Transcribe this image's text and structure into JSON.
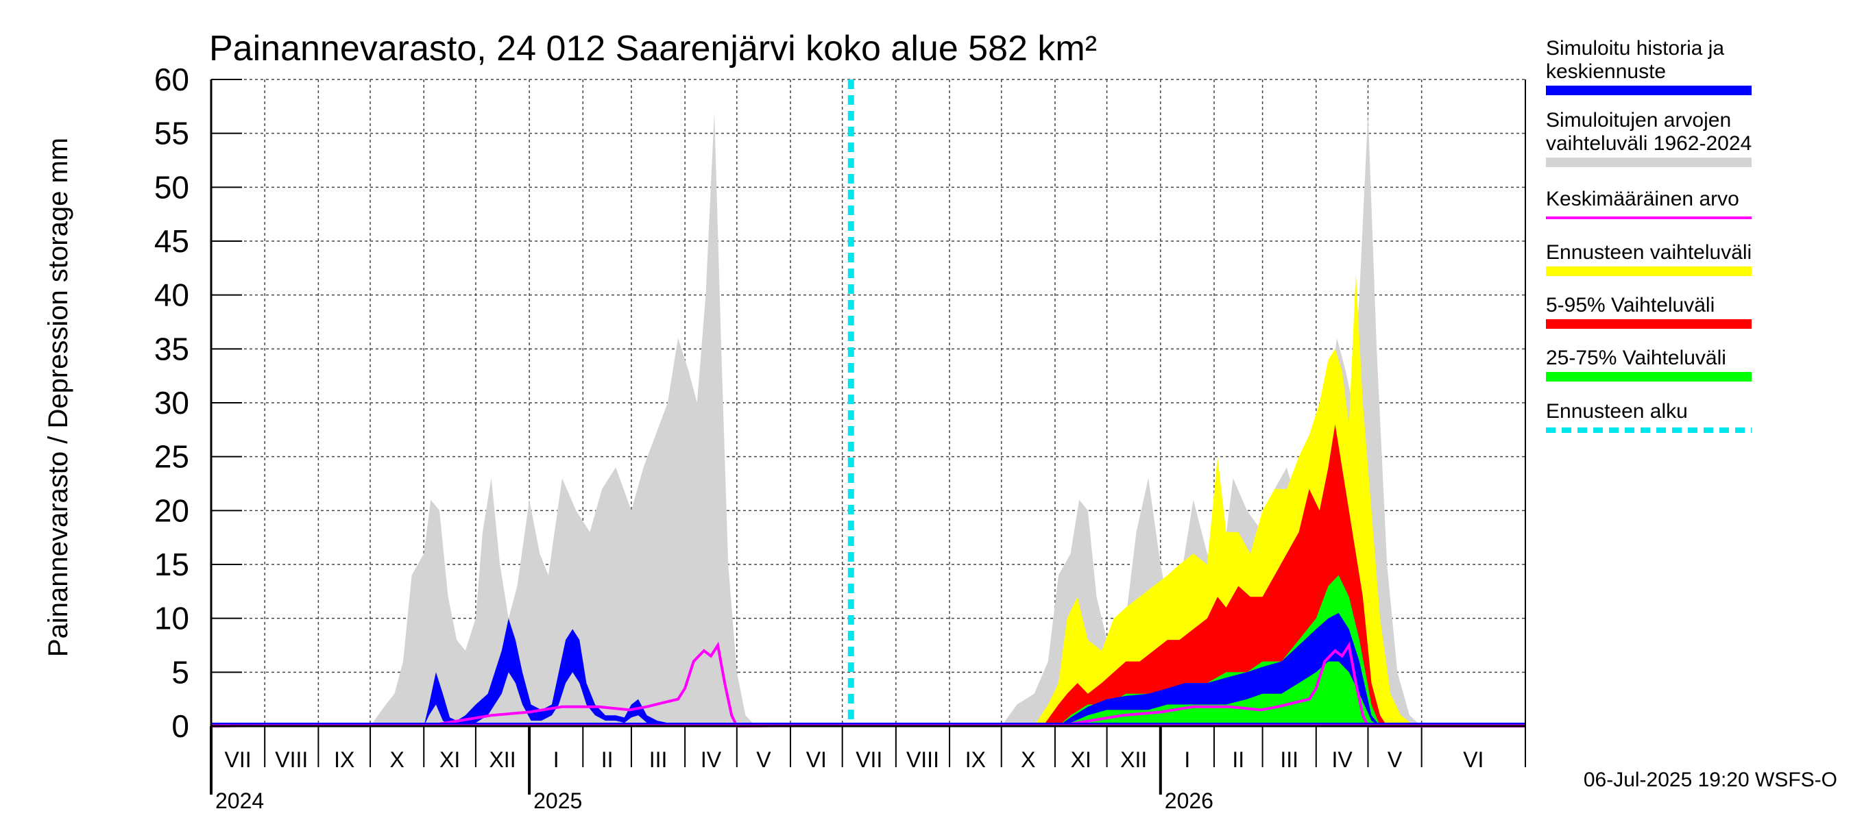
{
  "chart_data": {
    "type": "area",
    "title": "Painannevarasto, 24 012 Saarenjärvi koko alue 582 km²",
    "ylabel": "Painannevarasto / Depression storage    mm",
    "ylim": [
      0,
      60
    ],
    "yticks": [
      0,
      5,
      10,
      15,
      20,
      25,
      30,
      35,
      40,
      45,
      50,
      55,
      60
    ],
    "xlim": [
      "2024-07-01",
      "2026-07-31"
    ],
    "months": [
      {
        "label": "VII",
        "start": "2024-07-01"
      },
      {
        "label": "VIII",
        "start": "2024-08-01"
      },
      {
        "label": "IX",
        "start": "2024-09-01"
      },
      {
        "label": "X",
        "start": "2024-10-01"
      },
      {
        "label": "XI",
        "start": "2024-11-01"
      },
      {
        "label": "XII",
        "start": "2024-12-01"
      },
      {
        "label": "I",
        "start": "2025-01-01"
      },
      {
        "label": "II",
        "start": "2025-02-01"
      },
      {
        "label": "III",
        "start": "2025-03-01"
      },
      {
        "label": "IV",
        "start": "2025-04-01"
      },
      {
        "label": "V",
        "start": "2025-05-01"
      },
      {
        "label": "VI",
        "start": "2025-06-01"
      },
      {
        "label": "VII",
        "start": "2025-07-01"
      },
      {
        "label": "VIII",
        "start": "2025-08-01"
      },
      {
        "label": "IX",
        "start": "2025-09-01"
      },
      {
        "label": "X",
        "start": "2025-10-01"
      },
      {
        "label": "XI",
        "start": "2025-11-01"
      },
      {
        "label": "XII",
        "start": "2025-12-01"
      },
      {
        "label": "I",
        "start": "2026-01-01"
      },
      {
        "label": "II",
        "start": "2026-02-01"
      },
      {
        "label": "III",
        "start": "2026-03-01"
      },
      {
        "label": "IV",
        "start": "2026-04-01"
      },
      {
        "label": "V",
        "start": "2026-05-01"
      },
      {
        "label": "VI",
        "start": "2026-06-01"
      }
    ],
    "years": [
      {
        "label": "2024",
        "date": "2024-07-01"
      },
      {
        "label": "2025",
        "date": "2025-01-01"
      },
      {
        "label": "2026",
        "date": "2026-01-01"
      }
    ],
    "forecast_start": "2025-07-06",
    "series": [
      {
        "name": "Simuloitujen arvojen vaihteluväli 1962-2024",
        "color": "#d3d3d3",
        "x": [
          "2024-07-01",
          "2024-10-01",
          "2024-10-10",
          "2024-10-15",
          "2024-10-20",
          "2024-10-25",
          "2024-11-01",
          "2024-11-05",
          "2024-11-10",
          "2024-11-15",
          "2024-11-20",
          "2024-11-25",
          "2024-12-01",
          "2024-12-05",
          "2024-12-10",
          "2024-12-15",
          "2024-12-20",
          "2024-12-25",
          "2025-01-01",
          "2025-01-07",
          "2025-01-12",
          "2025-01-20",
          "2025-01-28",
          "2025-02-05",
          "2025-02-12",
          "2025-02-20",
          "2025-03-01",
          "2025-03-08",
          "2025-03-15",
          "2025-03-22",
          "2025-03-28",
          "2025-04-03",
          "2025-04-08",
          "2025-04-13",
          "2025-04-18",
          "2025-04-22",
          "2025-04-26",
          "2025-05-01",
          "2025-05-06",
          "2025-05-12",
          "2025-05-18",
          "2025-05-25",
          "2025-06-01",
          "2025-10-01",
          "2025-10-10",
          "2025-10-20",
          "2025-10-28",
          "2025-11-03",
          "2025-11-10",
          "2025-11-15",
          "2025-11-20",
          "2025-11-25",
          "2025-12-01",
          "2025-12-06",
          "2025-12-12",
          "2025-12-18",
          "2025-12-25",
          "2026-01-01",
          "2026-01-07",
          "2026-01-12",
          "2026-01-20",
          "2026-01-28",
          "2026-02-05",
          "2026-02-12",
          "2026-02-20",
          "2026-03-01",
          "2026-03-08",
          "2026-03-15",
          "2026-03-22",
          "2026-03-28",
          "2026-04-03",
          "2026-04-08",
          "2026-04-13",
          "2026-04-18",
          "2026-04-22",
          "2026-04-26",
          "2026-05-01",
          "2026-05-06",
          "2026-05-12",
          "2026-05-18",
          "2026-05-25",
          "2026-06-01"
        ],
        "low": [
          0,
          0,
          0,
          0,
          0,
          0,
          0,
          0,
          0,
          0,
          0,
          0,
          0,
          0,
          0,
          0,
          0,
          0,
          0,
          0,
          0,
          0,
          0,
          0,
          0,
          0,
          0,
          0,
          0,
          0,
          0,
          0,
          0,
          0,
          0,
          0,
          0,
          0,
          0,
          0,
          0,
          0,
          0,
          0,
          0,
          0,
          0,
          0,
          0,
          0,
          0,
          0,
          0,
          0,
          0,
          0,
          0,
          0,
          0,
          0,
          0,
          0,
          0,
          0,
          0,
          0,
          0,
          0,
          0,
          0,
          0,
          0,
          0,
          0,
          0,
          0,
          0,
          0,
          0,
          0,
          0,
          0
        ],
        "high": [
          0,
          0,
          2,
          3,
          6,
          14,
          16,
          21,
          20,
          12,
          8,
          7,
          10,
          18,
          23,
          15,
          10,
          13,
          21,
          16,
          14,
          23,
          20,
          18,
          22,
          24,
          20,
          24,
          27,
          30,
          36,
          33,
          30,
          40,
          57,
          35,
          15,
          5,
          1,
          0,
          0,
          0,
          0,
          0,
          2,
          3,
          6,
          14,
          16,
          21,
          20,
          12,
          8,
          7,
          10,
          18,
          23,
          15,
          10,
          13,
          21,
          16,
          14,
          23,
          20,
          18,
          22,
          24,
          20,
          24,
          27,
          30,
          36,
          33,
          30,
          40,
          57,
          35,
          15,
          5,
          1,
          0
        ]
      },
      {
        "name": "Ennusteen vaihteluväli",
        "color": "#ffff00",
        "x": [
          "2025-10-20",
          "2025-10-28",
          "2025-11-03",
          "2025-11-08",
          "2025-11-14",
          "2025-11-20",
          "2025-11-28",
          "2025-12-05",
          "2025-12-12",
          "2025-12-20",
          "2025-12-28",
          "2026-01-05",
          "2026-01-12",
          "2026-01-20",
          "2026-01-28",
          "2026-02-03",
          "2026-02-08",
          "2026-02-15",
          "2026-02-22",
          "2026-03-01",
          "2026-03-08",
          "2026-03-15",
          "2026-03-22",
          "2026-03-28",
          "2026-04-03",
          "2026-04-08",
          "2026-04-12",
          "2026-04-16",
          "2026-04-20",
          "2026-04-24",
          "2026-04-28",
          "2026-05-03",
          "2026-05-08",
          "2026-05-14",
          "2026-05-20",
          "2026-05-28"
        ],
        "low": [
          0,
          0,
          0,
          0,
          0,
          0,
          0,
          0,
          0,
          0,
          0,
          0,
          0,
          0,
          0,
          0,
          0,
          0,
          0,
          0,
          0,
          0,
          0,
          0,
          0,
          0,
          0,
          0,
          0,
          0,
          0,
          0,
          0,
          0,
          0,
          0
        ],
        "high": [
          0,
          2,
          4,
          10,
          12,
          8,
          7,
          10,
          11,
          12,
          13,
          14,
          15,
          16,
          15,
          25,
          18,
          18,
          16,
          20,
          22,
          22,
          25,
          27,
          30,
          34,
          35,
          33,
          28,
          42,
          30,
          20,
          10,
          3,
          1,
          0
        ]
      },
      {
        "name": "5-95% Vaihteluväli",
        "color": "#ff0000",
        "x": [
          "2025-10-25",
          "2025-11-03",
          "2025-11-08",
          "2025-11-14",
          "2025-11-20",
          "2025-11-28",
          "2025-12-05",
          "2025-12-12",
          "2025-12-20",
          "2025-12-28",
          "2026-01-05",
          "2026-01-12",
          "2026-01-20",
          "2026-01-28",
          "2026-02-03",
          "2026-02-08",
          "2026-02-15",
          "2026-02-22",
          "2026-03-01",
          "2026-03-08",
          "2026-03-15",
          "2026-03-22",
          "2026-03-28",
          "2026-04-03",
          "2026-04-08",
          "2026-04-12",
          "2026-04-16",
          "2026-04-20",
          "2026-04-24",
          "2026-04-28",
          "2026-05-03",
          "2026-05-08",
          "2026-05-12"
        ],
        "low": [
          0,
          0,
          0,
          0,
          0,
          0,
          0,
          0,
          0,
          0,
          0,
          0,
          0,
          0,
          0,
          0,
          0,
          0,
          0,
          0,
          0,
          0,
          0,
          0,
          0,
          0,
          0,
          0,
          0,
          0,
          0,
          0,
          0
        ],
        "high": [
          0,
          2,
          3,
          4,
          3,
          4,
          5,
          6,
          6,
          7,
          8,
          8,
          9,
          10,
          12,
          11,
          13,
          12,
          12,
          14,
          16,
          18,
          22,
          20,
          24,
          28,
          24,
          20,
          16,
          12,
          4,
          1,
          0
        ]
      },
      {
        "name": "25-75% Vaihteluväli",
        "color": "#00ff00",
        "x": [
          "2025-11-03",
          "2025-11-10",
          "2025-11-20",
          "2025-12-01",
          "2025-12-12",
          "2025-12-25",
          "2026-01-05",
          "2026-01-15",
          "2026-01-28",
          "2026-02-08",
          "2026-02-20",
          "2026-03-01",
          "2026-03-12",
          "2026-03-22",
          "2026-04-01",
          "2026-04-08",
          "2026-04-14",
          "2026-04-20",
          "2026-04-26",
          "2026-05-03",
          "2026-05-08"
        ],
        "low": [
          0,
          0,
          0,
          0,
          0,
          0,
          0,
          0,
          0,
          0,
          0,
          0,
          0,
          0,
          0,
          0,
          0,
          0,
          0,
          0,
          0
        ],
        "high": [
          0,
          1,
          2,
          2,
          3,
          3,
          3,
          4,
          4,
          5,
          5,
          6,
          6,
          8,
          10,
          13,
          14,
          12,
          8,
          2,
          0
        ]
      },
      {
        "name": "Simuloitu historia ja keskiennuste",
        "color": "#0000ff",
        "x": [
          "2024-07-01",
          "2024-11-01",
          "2024-11-04",
          "2024-11-08",
          "2024-11-12",
          "2024-11-16",
          "2024-11-20",
          "2024-11-25",
          "2024-12-01",
          "2024-12-08",
          "2024-12-12",
          "2024-12-16",
          "2024-12-20",
          "2024-12-24",
          "2024-12-28",
          "2025-01-02",
          "2025-01-08",
          "2025-01-14",
          "2025-01-18",
          "2025-01-22",
          "2025-01-26",
          "2025-01-30",
          "2025-02-03",
          "2025-02-08",
          "2025-02-14",
          "2025-02-20",
          "2025-02-25",
          "2025-03-01",
          "2025-03-05",
          "2025-03-10",
          "2025-03-16",
          "2025-03-22",
          "2025-04-01",
          "2025-05-01",
          "2025-11-03",
          "2025-11-10",
          "2025-11-20",
          "2025-12-01",
          "2025-12-12",
          "2025-12-25",
          "2026-01-05",
          "2026-01-15",
          "2026-01-28",
          "2026-02-08",
          "2026-02-20",
          "2026-03-01",
          "2026-03-12",
          "2026-03-22",
          "2026-04-01",
          "2026-04-08",
          "2026-04-14",
          "2026-04-20",
          "2026-04-26",
          "2026-05-03",
          "2026-05-08",
          "2026-07-31"
        ],
        "low": [
          0,
          0,
          1,
          2,
          0.5,
          0,
          0,
          0,
          0.3,
          1,
          2,
          3,
          5,
          4,
          2,
          0.5,
          0.5,
          1,
          2,
          4,
          5,
          4,
          2,
          1,
          0.5,
          0.5,
          0.3,
          0.8,
          1,
          0.3,
          0.2,
          0.2,
          0,
          0,
          0,
          0.3,
          1,
          1.5,
          1.5,
          1.5,
          2,
          2,
          2,
          2,
          2.5,
          3,
          3,
          4,
          5,
          6,
          6,
          5,
          3,
          0.5,
          0,
          0
        ],
        "high": [
          0,
          0,
          2,
          5,
          3,
          0.8,
          0.5,
          1,
          2,
          3,
          5,
          7,
          10,
          8,
          5,
          2,
          1.5,
          2,
          5,
          8,
          9,
          8,
          4,
          2,
          1,
          1,
          0.8,
          2,
          2.5,
          1,
          0.5,
          0.3,
          0,
          0,
          0,
          0.8,
          1.8,
          2.5,
          2.8,
          3,
          3.5,
          4,
          4,
          4.5,
          5,
          5.5,
          6,
          7.5,
          9,
          10,
          10.5,
          9,
          6,
          1,
          0,
          0
        ]
      },
      {
        "name": "Keskimääräinen arvo",
        "color": "#ff00ff",
        "x": [
          "2024-07-01",
          "2024-11-10",
          "2024-11-25",
          "2024-12-10",
          "2025-01-01",
          "2025-01-20",
          "2025-02-10",
          "2025-02-28",
          "2025-03-10",
          "2025-03-20",
          "2025-03-28",
          "2025-04-01",
          "2025-04-06",
          "2025-04-12",
          "2025-04-16",
          "2025-04-20",
          "2025-04-24",
          "2025-04-28",
          "2025-05-01",
          "2025-11-10",
          "2025-11-25",
          "2025-12-10",
          "2026-01-01",
          "2026-01-20",
          "2026-02-10",
          "2026-02-28",
          "2026-03-10",
          "2026-03-20",
          "2026-03-28",
          "2026-04-01",
          "2026-04-06",
          "2026-04-12",
          "2026-04-16",
          "2026-04-20",
          "2026-04-24",
          "2026-04-28",
          "2026-05-01",
          "2026-07-31"
        ],
        "values": [
          0,
          0.2,
          0.6,
          1,
          1.3,
          1.8,
          1.8,
          1.5,
          1.8,
          2.2,
          2.5,
          3.5,
          6,
          7,
          6.5,
          7.5,
          4,
          1,
          0,
          0.2,
          0.6,
          1,
          1.3,
          1.8,
          1.8,
          1.5,
          1.8,
          2.2,
          2.5,
          3.5,
          6,
          7,
          6.5,
          7.5,
          4,
          1,
          0,
          0
        ]
      }
    ],
    "legend": [
      {
        "label": "Simuloitu historia ja keskiennuste",
        "color": "#0000ff",
        "style": "solid"
      },
      {
        "label": "Simuloitujen arvojen vaihteluväli 1962-2024",
        "color": "#d3d3d3",
        "style": "solid"
      },
      {
        "label": "Keskimääräinen arvo",
        "color": "#ff00ff",
        "style": "thin"
      },
      {
        "label": "Ennusteen vaihteluväli",
        "color": "#ffff00",
        "style": "solid"
      },
      {
        "label": "5-95% Vaihteluväli",
        "color": "#ff0000",
        "style": "solid"
      },
      {
        "label": "25-75% Vaihteluväli",
        "color": "#00ff00",
        "style": "solid"
      },
      {
        "label": "Ennusteen alku",
        "color": "#00e5ee",
        "style": "dashed"
      }
    ],
    "legend_lines": [
      [
        "Simuloitu historia ja",
        "keskiennuste"
      ],
      [
        "Simuloitujen arvojen",
        "vaihteluväli 1962-2024"
      ],
      [
        "Keskimääräinen arvo"
      ],
      [
        "Ennusteen vaihteluväli"
      ],
      [
        "5-95% Vaihteluväli"
      ],
      [
        "25-75% Vaihteluväli"
      ],
      [
        "Ennusteen alku"
      ]
    ],
    "legend_placement": "right",
    "grid": true
  },
  "footer": {
    "timestamp": "06-Jul-2025 19:20 WSFS-O"
  }
}
